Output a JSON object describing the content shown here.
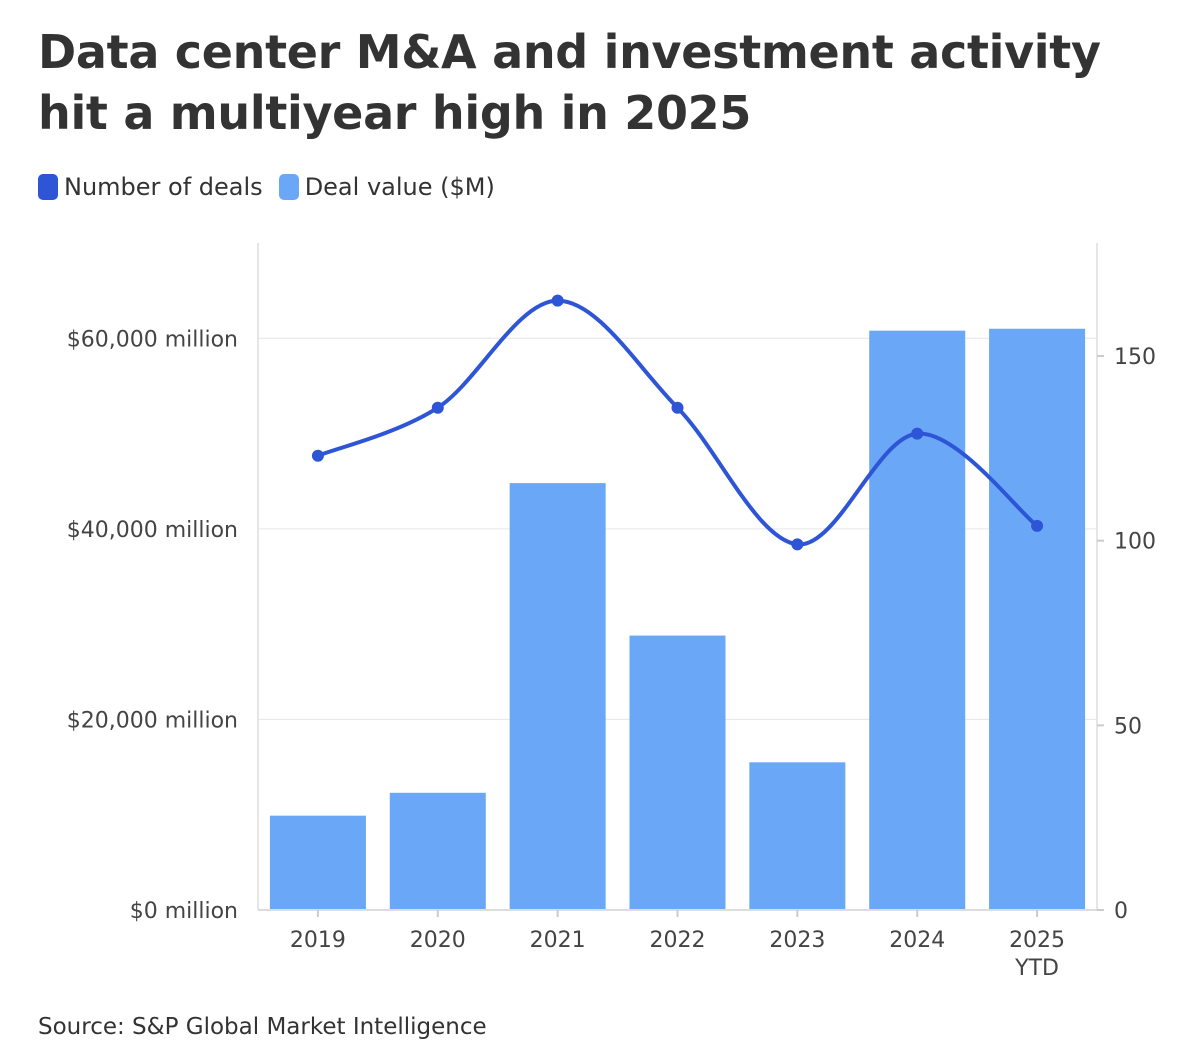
{
  "title": "Data center M&A and investment activity hit a multiyear high in 2025",
  "source": "Source: S&P Global Market Intelligence",
  "colors": {
    "line": "#2d55d6",
    "bar": "#6aa8f7",
    "text": "#333333",
    "grid": "#e6e6e6"
  },
  "chart_data": {
    "type": "bar",
    "categories": [
      [
        "2019"
      ],
      [
        "2020"
      ],
      [
        "2021"
      ],
      [
        "2022"
      ],
      [
        "2023"
      ],
      [
        "2024"
      ],
      [
        "2025",
        "YTD"
      ]
    ],
    "series": [
      {
        "name": "Number of deals",
        "type": "line",
        "axis": "right",
        "color": "#2d55d6",
        "values": [
          123,
          136,
          165,
          136,
          99,
          129,
          104
        ]
      },
      {
        "name": "Deal value ($M)",
        "type": "bar",
        "axis": "left",
        "color": "#6aa8f7",
        "values": [
          9900,
          12300,
          44800,
          28800,
          15500,
          60800,
          61000
        ]
      }
    ],
    "y_left": {
      "ticks": [
        0,
        20000,
        40000,
        60000
      ],
      "tick_labels": [
        "$0 million",
        "$20,000 million",
        "$40,000 million",
        "$60,000 million"
      ],
      "range": [
        0,
        70000
      ]
    },
    "y_right": {
      "ticks": [
        0,
        50,
        100,
        150
      ],
      "tick_labels": [
        "0",
        "50",
        "100",
        "150"
      ],
      "range": [
        0,
        180.6
      ]
    },
    "grid": true,
    "legend": "top-left"
  }
}
